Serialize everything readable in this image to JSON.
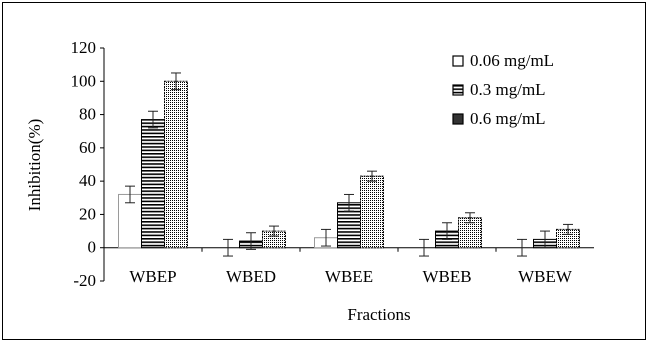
{
  "chart_data": {
    "type": "bar",
    "title": "",
    "xlabel": "Fractions",
    "ylabel": "Inhibition(%)",
    "ylim": [
      -20,
      120
    ],
    "yticks": [
      "120",
      "100",
      "80",
      "60",
      "40",
      "20",
      "0",
      "-20"
    ],
    "categories": [
      "WBEP",
      "WBED",
      "WBEE",
      "WBEB",
      "WBEW"
    ],
    "series": [
      {
        "name": "0.06 mg/mL",
        "pattern": "blank",
        "values": [
          32,
          0,
          6,
          0,
          0
        ],
        "errors": [
          5,
          5,
          5,
          5,
          5
        ]
      },
      {
        "name": "0.3 mg/mL",
        "pattern": "horizontal-lines",
        "values": [
          77,
          4,
          27,
          10,
          5
        ],
        "errors": [
          5,
          5,
          5,
          5,
          5
        ]
      },
      {
        "name": "0.6 mg/mL",
        "pattern": "dotted-grid",
        "values": [
          100,
          10,
          43,
          18,
          11
        ],
        "errors": [
          5,
          3,
          3,
          3,
          3
        ]
      }
    ],
    "legend_position": "top-right",
    "grid": false
  }
}
